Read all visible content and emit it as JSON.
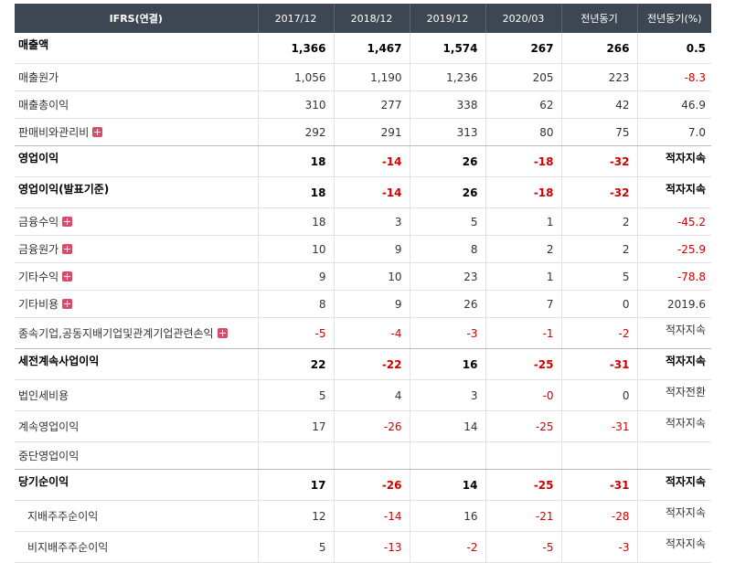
{
  "header": {
    "label": "IFRS(연결)",
    "periods": [
      "2017/12",
      "2018/12",
      "2019/12",
      "2020/03",
      "전년동기",
      "전년동기(%)"
    ]
  },
  "rows": [
    {
      "label": "매출액",
      "bold": true,
      "expand": false,
      "values": [
        "1,366",
        "1,467",
        "1,574",
        "267",
        "266",
        "0.5"
      ]
    },
    {
      "label": "매출원가",
      "bold": false,
      "expand": false,
      "values": [
        "1,056",
        "1,190",
        "1,236",
        "205",
        "223",
        "-8.3"
      ]
    },
    {
      "label": "매출총이익",
      "bold": false,
      "expand": false,
      "values": [
        "310",
        "277",
        "338",
        "62",
        "42",
        "46.9"
      ]
    },
    {
      "label": "판매비와관리비",
      "bold": false,
      "expand": true,
      "values": [
        "292",
        "291",
        "313",
        "80",
        "75",
        "7.0"
      ]
    },
    {
      "label": "영업이익",
      "bold": true,
      "expand": false,
      "values": [
        "18",
        "-14",
        "26",
        "-18",
        "-32",
        "적자지속"
      ]
    },
    {
      "label": "영업이익(발표기준)",
      "bold": true,
      "expand": false,
      "values": [
        "18",
        "-14",
        "26",
        "-18",
        "-32",
        "적자지속"
      ]
    },
    {
      "label": "금융수익",
      "bold": false,
      "expand": true,
      "values": [
        "18",
        "3",
        "5",
        "1",
        "2",
        "-45.2"
      ]
    },
    {
      "label": "금융원가",
      "bold": false,
      "expand": true,
      "values": [
        "10",
        "9",
        "8",
        "2",
        "2",
        "-25.9"
      ]
    },
    {
      "label": "기타수익",
      "bold": false,
      "expand": true,
      "values": [
        "9",
        "10",
        "23",
        "1",
        "5",
        "-78.8"
      ]
    },
    {
      "label": "기타비용",
      "bold": false,
      "expand": true,
      "values": [
        "8",
        "9",
        "26",
        "7",
        "0",
        "2019.6"
      ]
    },
    {
      "label": "종속기업,공동지배기업및관계기업관련손익",
      "bold": false,
      "expand": true,
      "values": [
        "-5",
        "-4",
        "-3",
        "-1",
        "-2",
        "적자지속"
      ]
    },
    {
      "label": "세전계속사업이익",
      "bold": true,
      "expand": false,
      "values": [
        "22",
        "-22",
        "16",
        "-25",
        "-31",
        "적자지속"
      ]
    },
    {
      "label": "법인세비용",
      "bold": false,
      "expand": false,
      "values": [
        "5",
        "4",
        "3",
        "-0",
        "0",
        "적자전환"
      ]
    },
    {
      "label": "계속영업이익",
      "bold": false,
      "expand": false,
      "values": [
        "17",
        "-26",
        "14",
        "-25",
        "-31",
        "적자지속"
      ]
    },
    {
      "label": "중단영업이익",
      "bold": false,
      "expand": false,
      "values": [
        "",
        "",
        "",
        "",
        "",
        ""
      ]
    },
    {
      "label": "당기순이익",
      "bold": true,
      "expand": false,
      "values": [
        "17",
        "-26",
        "14",
        "-25",
        "-31",
        "적자지속"
      ]
    },
    {
      "label": "지배주주순이익",
      "bold": false,
      "expand": false,
      "indent": true,
      "values": [
        "12",
        "-14",
        "16",
        "-21",
        "-28",
        "적자지속"
      ]
    },
    {
      "label": "비지배주주순이익",
      "bold": false,
      "expand": false,
      "indent": true,
      "values": [
        "5",
        "-13",
        "-2",
        "-5",
        "-3",
        "적자지속"
      ]
    }
  ],
  "colors": {
    "header_bg": "#3d4653",
    "negative": "#d10000"
  }
}
